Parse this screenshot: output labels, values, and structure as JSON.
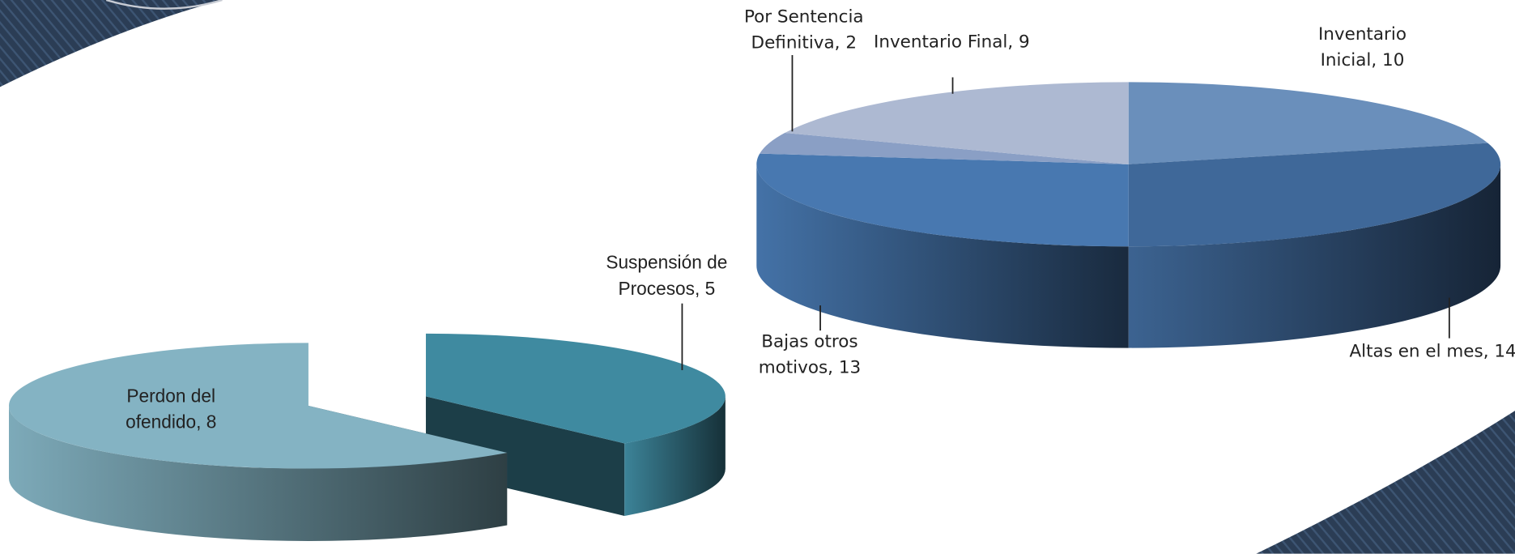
{
  "chart_data": [
    {
      "type": "pie",
      "values": [
        10,
        14,
        13,
        2,
        9
      ],
      "value_labels": [
        "Inventario Inicial, 10",
        "Altas en el mes, 14",
        "Bajas otros motivos, 13",
        "Por Sentencia Definitiva, 2",
        "Inventario Final, 9"
      ],
      "colors": [
        "#6a8fbb",
        "#3f6899",
        "#4878b0",
        "#8a9fc5",
        "#adb9d2"
      ]
    },
    {
      "type": "pie",
      "values": [
        5,
        8
      ],
      "value_labels": [
        "Suspensión de Procesos, 5",
        "Perdon del ofendido, 8"
      ],
      "colors": [
        "#3f8aa0",
        "#84b3c3"
      ]
    }
  ]
}
